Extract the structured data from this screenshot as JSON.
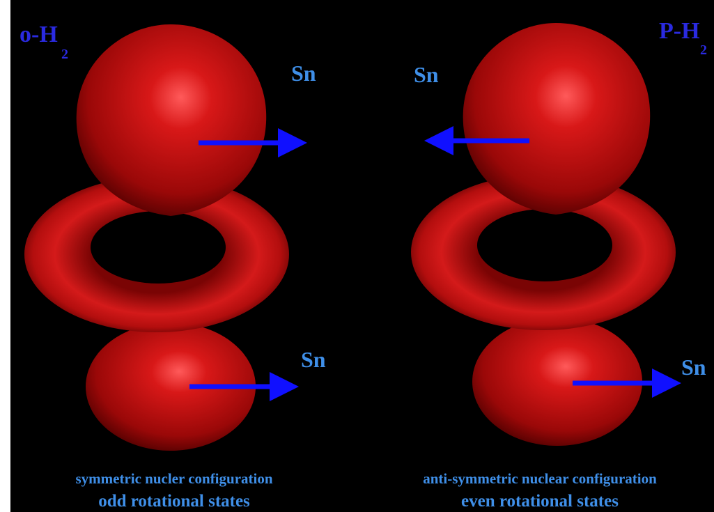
{
  "left": {
    "label": {
      "main": "o-H",
      "sub": "2"
    },
    "spin_labels": [
      "Sn",
      "Sn"
    ],
    "caption": [
      "symmetric nucler configuration",
      "odd rotational states"
    ]
  },
  "right": {
    "label": {
      "main": "P-H",
      "sub": "2"
    },
    "spin_labels": [
      "Sn",
      "Sn"
    ],
    "caption": [
      "anti-symmetric nuclear configuration",
      "even rotational states"
    ]
  }
}
